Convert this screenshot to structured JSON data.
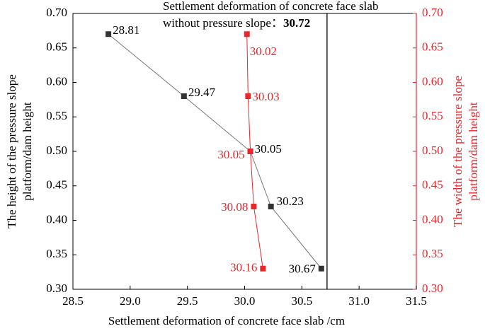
{
  "chart_data": {
    "type": "line",
    "xlabel": "Settlement deformation of concrete face slab /cm",
    "ylabel": [
      "The height of the pressure slope",
      "platform/dam height"
    ],
    "y2label": [
      "The width of the pressure slope",
      "platform/dam height"
    ],
    "xlim": [
      28.5,
      31.5
    ],
    "xticks": [
      28.5,
      {
        "value": 29,
        "label": "29.0"
      },
      29.5,
      {
        "value": 30,
        "label": "30.0"
      },
      30.5,
      {
        "value": 31,
        "label": "31.0"
      },
      31.5
    ],
    "ylim": [
      0.3,
      0.7
    ],
    "yticks": [
      {
        "value": 0.3,
        "label": "0.30"
      },
      0.35,
      {
        "value": 0.4,
        "label": "0.40"
      },
      0.45,
      {
        "value": 0.5,
        "label": "0.50"
      },
      0.55,
      {
        "value": 0.6,
        "label": "0.60"
      },
      0.65,
      {
        "value": 0.7,
        "label": "0.70"
      }
    ],
    "y2lim": [
      0.3,
      0.7
    ],
    "y2ticks": [
      {
        "value": 0.3,
        "label": "0.30"
      },
      0.35,
      {
        "value": 0.4,
        "label": "0.40"
      },
      0.45,
      {
        "value": 0.5,
        "label": "0.50"
      },
      0.55,
      {
        "value": 0.6,
        "label": "0.60"
      },
      0.65,
      {
        "value": 0.7,
        "label": "0.70"
      }
    ],
    "y2color": "#e8262b",
    "series": [
      {
        "color": "#333333",
        "line_color": "#777777",
        "x": [
          28.81,
          29.47,
          30.05,
          30.23,
          30.67
        ],
        "values": [
          0.67,
          0.58,
          0.5,
          0.42,
          0.33
        ]
      },
      {
        "color": "#e8262b",
        "line_color": "#e8262b",
        "axis": "y2",
        "x": [
          30.02,
          30.03,
          30.05,
          30.08,
          30.16
        ],
        "values": [
          0.67,
          0.58,
          0.5,
          0.42,
          0.33
        ]
      }
    ],
    "reference_line": {
      "x": 30.72,
      "annotation": [
        "Settlement deformation of concrete face slab",
        "without pressure slope："
      ]
    }
  }
}
